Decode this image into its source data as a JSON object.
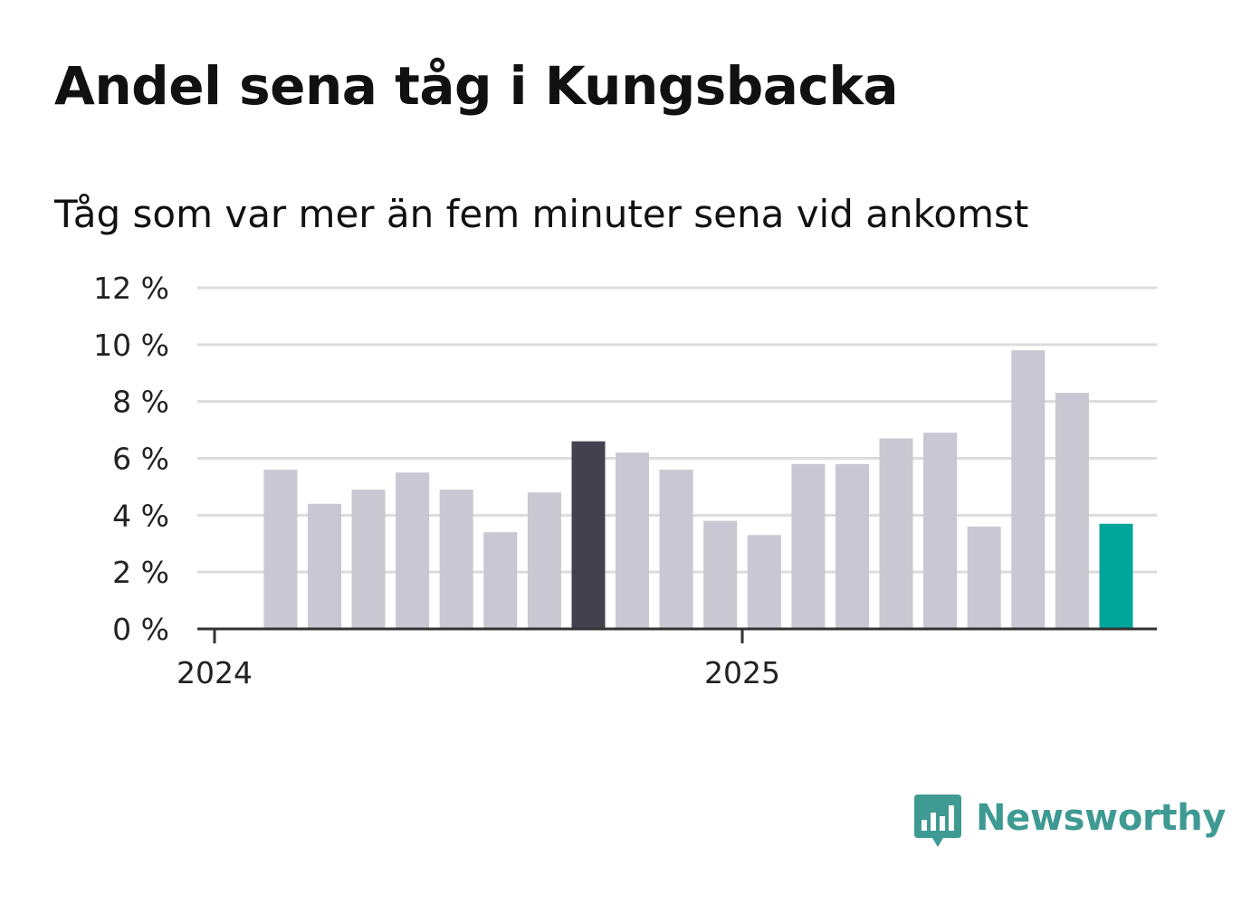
{
  "title": "Andel sena tåg i Kungsbacka",
  "subtitle": "Tåg som var mer än fem minuter sena vid ankomst",
  "brand": {
    "name": "Newsworthy",
    "color": "#3e9a93",
    "icon": "bar-chart-speech-bubble-icon"
  },
  "chart_data": {
    "type": "bar",
    "ylim": [
      0,
      12
    ],
    "yticks": [
      0,
      2,
      4,
      6,
      8,
      10,
      12
    ],
    "ytick_labels": [
      "0 %",
      "2 %",
      "4 %",
      "6 %",
      "8 %",
      "10 %",
      "12 %"
    ],
    "grid": true,
    "x_tick_labels": [
      {
        "label": "2024",
        "date": "2024-01"
      },
      {
        "label": "2025",
        "date": "2025-01"
      }
    ],
    "categories": [
      "2024-02",
      "2024-03",
      "2024-04",
      "2024-05",
      "2024-06",
      "2024-07",
      "2024-08",
      "2024-09",
      "2024-10",
      "2024-11",
      "2024-12",
      "2025-01",
      "2025-02",
      "2025-03",
      "2025-04",
      "2025-05",
      "2025-06",
      "2025-07",
      "2025-08",
      "2025-09"
    ],
    "values": [
      5.6,
      4.4,
      4.9,
      5.5,
      4.9,
      3.4,
      4.8,
      6.6,
      6.2,
      5.6,
      3.8,
      3.3,
      5.8,
      5.8,
      6.7,
      6.9,
      3.6,
      9.8,
      8.3,
      3.7
    ],
    "colors": {
      "default": "#c8c7d2",
      "highlight": "#43414d",
      "latest": "#00a59a",
      "grid": "#dcdcdc",
      "axis": "#333333"
    },
    "highlight_index": 7,
    "latest_index": 19
  }
}
